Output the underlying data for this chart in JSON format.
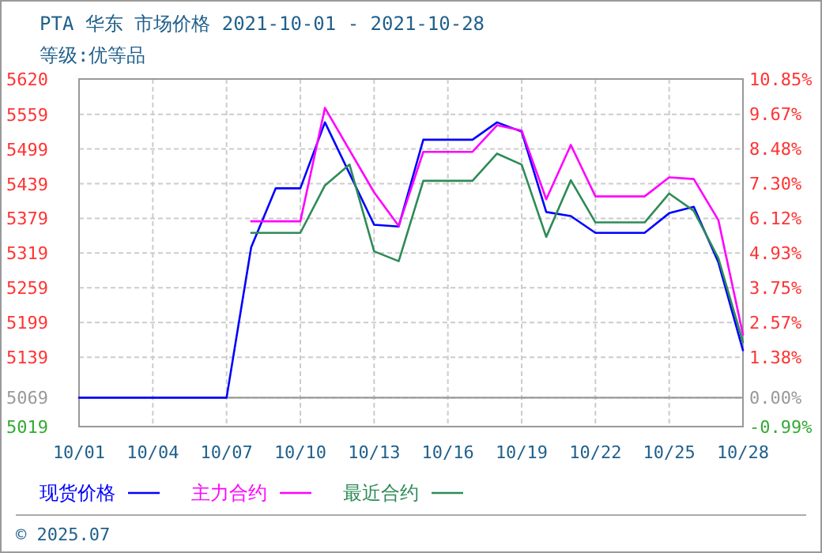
{
  "chart_data": {
    "type": "line",
    "title": "PTA 华东 市场价格 2021-10-01 - 2021-10-28",
    "subtitle": "等级:优等品",
    "annotations": [
      "© 2025.07"
    ],
    "xlim": [
      "--10-01",
      "--10-28"
    ],
    "xticks": [
      {
        "value": "--10-01",
        "label": "10/01"
      },
      {
        "value": "--10-04",
        "label": "10/04"
      },
      {
        "value": "--10-07",
        "label": "10/07"
      },
      {
        "value": "--10-10",
        "label": "10/10"
      },
      {
        "value": "--10-13",
        "label": "10/13"
      },
      {
        "value": "--10-16",
        "label": "10/16"
      },
      {
        "value": "--10-19",
        "label": "10/19"
      },
      {
        "value": "--10-22",
        "label": "10/22"
      },
      {
        "value": "--10-25",
        "label": "10/25"
      },
      {
        "value": "--10-28",
        "label": "10/28"
      }
    ],
    "ylim": [
      5019,
      5620
    ],
    "yticks": [
      5620,
      5559,
      5499,
      5439,
      5379,
      5319,
      5259,
      5199,
      5139,
      5069,
      5019
    ],
    "y2lim": [
      -0.99,
      10.85
    ],
    "y2ticks": [
      {
        "value": 10.85,
        "label": "10.85%"
      },
      {
        "value": 9.67,
        "label": "9.67%"
      },
      {
        "value": 8.48,
        "label": "8.48%"
      },
      {
        "value": 7.3,
        "label": "7.30%"
      },
      {
        "value": 6.12,
        "label": "6.12%"
      },
      {
        "value": 4.93,
        "label": "4.93%"
      },
      {
        "value": 3.75,
        "label": "3.75%"
      },
      {
        "value": 2.57,
        "label": "2.57%"
      },
      {
        "value": 1.38,
        "label": "1.38%"
      },
      {
        "value": 0,
        "label": "0.00%"
      },
      {
        "value": -0.99,
        "label": "-0.99%"
      }
    ],
    "ref_lines": [
      {
        "axis": "y",
        "value": 5069,
        "color": "#999999"
      }
    ],
    "grid": true,
    "legend": "bottom",
    "line_style": "solid",
    "series": [
      {
        "name": "现货价格",
        "color": "#0000ff",
        "x": [
          "--10-01",
          "--10-07",
          "--10-08",
          "--10-09",
          "--10-10",
          "--10-11",
          "--10-13",
          "--10-14",
          "--10-15",
          "--10-17",
          "--10-18",
          "--10-19",
          "--10-20",
          "--10-21",
          "--10-22",
          "--10-24",
          "--10-25",
          "--10-26",
          "--10-27",
          "--10-28"
        ],
        "values": [
          5069,
          5069,
          5329,
          5431,
          5431,
          5545,
          5368,
          5365,
          5515,
          5515,
          5545,
          5529,
          5390,
          5383,
          5354,
          5354,
          5388,
          5399,
          5303,
          5151
        ]
      },
      {
        "name": "主力合约",
        "color": "#ff00ff",
        "x": [
          "--10-08",
          "--10-10",
          "--10-11",
          "--10-13",
          "--10-14",
          "--10-15",
          "--10-17",
          "--10-18",
          "--10-19",
          "--10-20",
          "--10-21",
          "--10-22",
          "--10-24",
          "--10-25",
          "--10-26",
          "--10-27",
          "--10-28"
        ],
        "values": [
          5374,
          5374,
          5570,
          5424,
          5366,
          5494,
          5494,
          5540,
          5531,
          5412,
          5506,
          5417,
          5417,
          5450,
          5447,
          5376,
          5178
        ]
      },
      {
        "name": "最近合约",
        "color": "#2e8b57",
        "x": [
          "--10-08",
          "--10-10",
          "--10-11",
          "--10-12",
          "--10-13",
          "--10-14",
          "--10-15",
          "--10-17",
          "--10-18",
          "--10-19",
          "--10-20",
          "--10-21",
          "--10-22",
          "--10-24",
          "--10-25",
          "--10-26",
          "--10-27",
          "--10-28"
        ],
        "values": [
          5354,
          5354,
          5436,
          5472,
          5322,
          5305,
          5444,
          5444,
          5491,
          5472,
          5347,
          5445,
          5372,
          5372,
          5422,
          5392,
          5310,
          5165
        ]
      }
    ]
  }
}
